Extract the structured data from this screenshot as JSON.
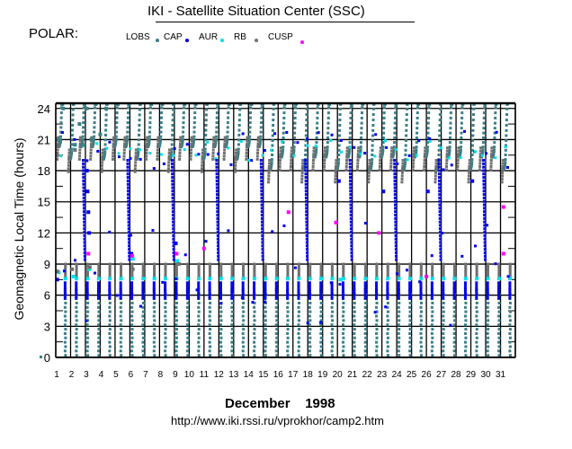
{
  "header": {
    "title": "IKI - Satellite Situation Center (SSC)",
    "satellite": "POLAR:"
  },
  "chart_data": {
    "type": "scatter",
    "title": "IKI - Satellite Situation Center (SSC)",
    "xlabel": "December    1998",
    "ylabel": "Geomagnetic  Local Time  (hours)",
    "x_tick_labels": [
      "1",
      "2",
      "3",
      "4",
      "5",
      "6",
      "7",
      "8",
      "9",
      "10",
      "11",
      "12",
      "13",
      "14",
      "15",
      "16",
      "17",
      "18",
      "19",
      "20",
      "21",
      "22",
      "23",
      "24",
      "25",
      "26",
      "27",
      "28",
      "29",
      "30",
      "31"
    ],
    "y_tick_labels": [
      "0",
      "3",
      "6",
      "9",
      "12",
      "15",
      "18",
      "21",
      "24"
    ],
    "xlim": [
      1,
      32
    ],
    "ylim": [
      0,
      24.5
    ],
    "grid": true,
    "legend_position": "top",
    "legend": [
      {
        "name": "LOBS",
        "color": "#3a7f86"
      },
      {
        "name": "CAP",
        "color": "#0000ee"
      },
      {
        "name": "AUR",
        "color": "#00e0e8"
      },
      {
        "name": "RB",
        "color": "#707070"
      },
      {
        "name": "CUSP",
        "color": "#ff00ff"
      }
    ],
    "orbit_period_days": 0.75,
    "orbits": [
      {
        "start_day": 1.15
      },
      {
        "start_day": 1.9
      },
      {
        "start_day": 2.65
      },
      {
        "start_day": 3.4
      },
      {
        "start_day": 4.15
      },
      {
        "start_day": 4.9
      },
      {
        "start_day": 5.65
      },
      {
        "start_day": 6.4
      },
      {
        "start_day": 7.15
      },
      {
        "start_day": 7.9
      },
      {
        "start_day": 8.65
      },
      {
        "start_day": 9.4
      },
      {
        "start_day": 10.15
      },
      {
        "start_day": 10.9
      },
      {
        "start_day": 11.65
      },
      {
        "start_day": 12.4
      },
      {
        "start_day": 13.15
      },
      {
        "start_day": 13.9
      },
      {
        "start_day": 14.65
      },
      {
        "start_day": 15.4
      },
      {
        "start_day": 16.15
      },
      {
        "start_day": 16.9
      },
      {
        "start_day": 17.65
      },
      {
        "start_day": 18.4
      },
      {
        "start_day": 19.15
      },
      {
        "start_day": 19.9
      },
      {
        "start_day": 20.65
      },
      {
        "start_day": 21.4
      },
      {
        "start_day": 22.15
      },
      {
        "start_day": 22.9
      },
      {
        "start_day": 23.65
      },
      {
        "start_day": 24.4
      },
      {
        "start_day": 25.15
      },
      {
        "start_day": 25.9
      },
      {
        "start_day": 26.65
      },
      {
        "start_day": 27.4
      },
      {
        "start_day": 28.15
      },
      {
        "start_day": 28.9
      },
      {
        "start_day": 29.65
      },
      {
        "start_day": 30.4
      },
      {
        "start_day": 31.15
      }
    ],
    "series": [
      {
        "name": "LOBS",
        "description_points": [
          [
            1.1,
            21
          ],
          [
            1.3,
            20.8
          ],
          [
            1.5,
            24
          ],
          [
            2.3,
            20.5
          ],
          [
            2.6,
            22.5
          ],
          [
            2.8,
            20.5
          ],
          [
            3.1,
            24
          ],
          [
            3.4,
            21
          ],
          [
            4.0,
            21.5
          ],
          [
            4.4,
            24
          ]
        ]
      },
      {
        "name": "CAP",
        "description_points": [
          [
            1.1,
            7.5
          ],
          [
            3.1,
            18
          ],
          [
            3.15,
            16
          ],
          [
            3.2,
            14
          ],
          [
            3.25,
            12
          ],
          [
            6.1,
            10
          ],
          [
            9.1,
            11
          ],
          [
            20.1,
            17
          ],
          [
            23.1,
            16
          ],
          [
            26.1,
            16
          ],
          [
            29.1,
            17
          ]
        ]
      },
      {
        "name": "AUR",
        "description_points": [
          [
            1.2,
            8.2
          ],
          [
            2.2,
            7.8
          ],
          [
            3.25,
            8.5
          ],
          [
            6.2,
            9.5
          ],
          [
            9.2,
            9.3
          ],
          [
            20.2,
            7.5
          ]
        ]
      },
      {
        "name": "RB",
        "description_points": [
          [
            1.1,
            8.3
          ],
          [
            2.1,
            8.5
          ],
          [
            2.3,
            20
          ],
          [
            3.3,
            8.7
          ],
          [
            6.2,
            8.5
          ],
          [
            9.3,
            9
          ]
        ]
      },
      {
        "name": "CUSP",
        "description_points": [
          [
            3.2,
            10
          ],
          [
            6.15,
            9.8
          ],
          [
            9.15,
            10
          ],
          [
            11.0,
            10.5
          ],
          [
            16.7,
            14
          ],
          [
            19.9,
            13
          ],
          [
            22.8,
            12
          ],
          [
            26.0,
            7.8
          ],
          [
            31.2,
            14.5
          ],
          [
            31.2,
            10
          ]
        ]
      }
    ]
  },
  "footer": {
    "month_year": "December    1998",
    "url": "http://www.iki.rssi.ru/vprokhor/camp2.htm"
  }
}
